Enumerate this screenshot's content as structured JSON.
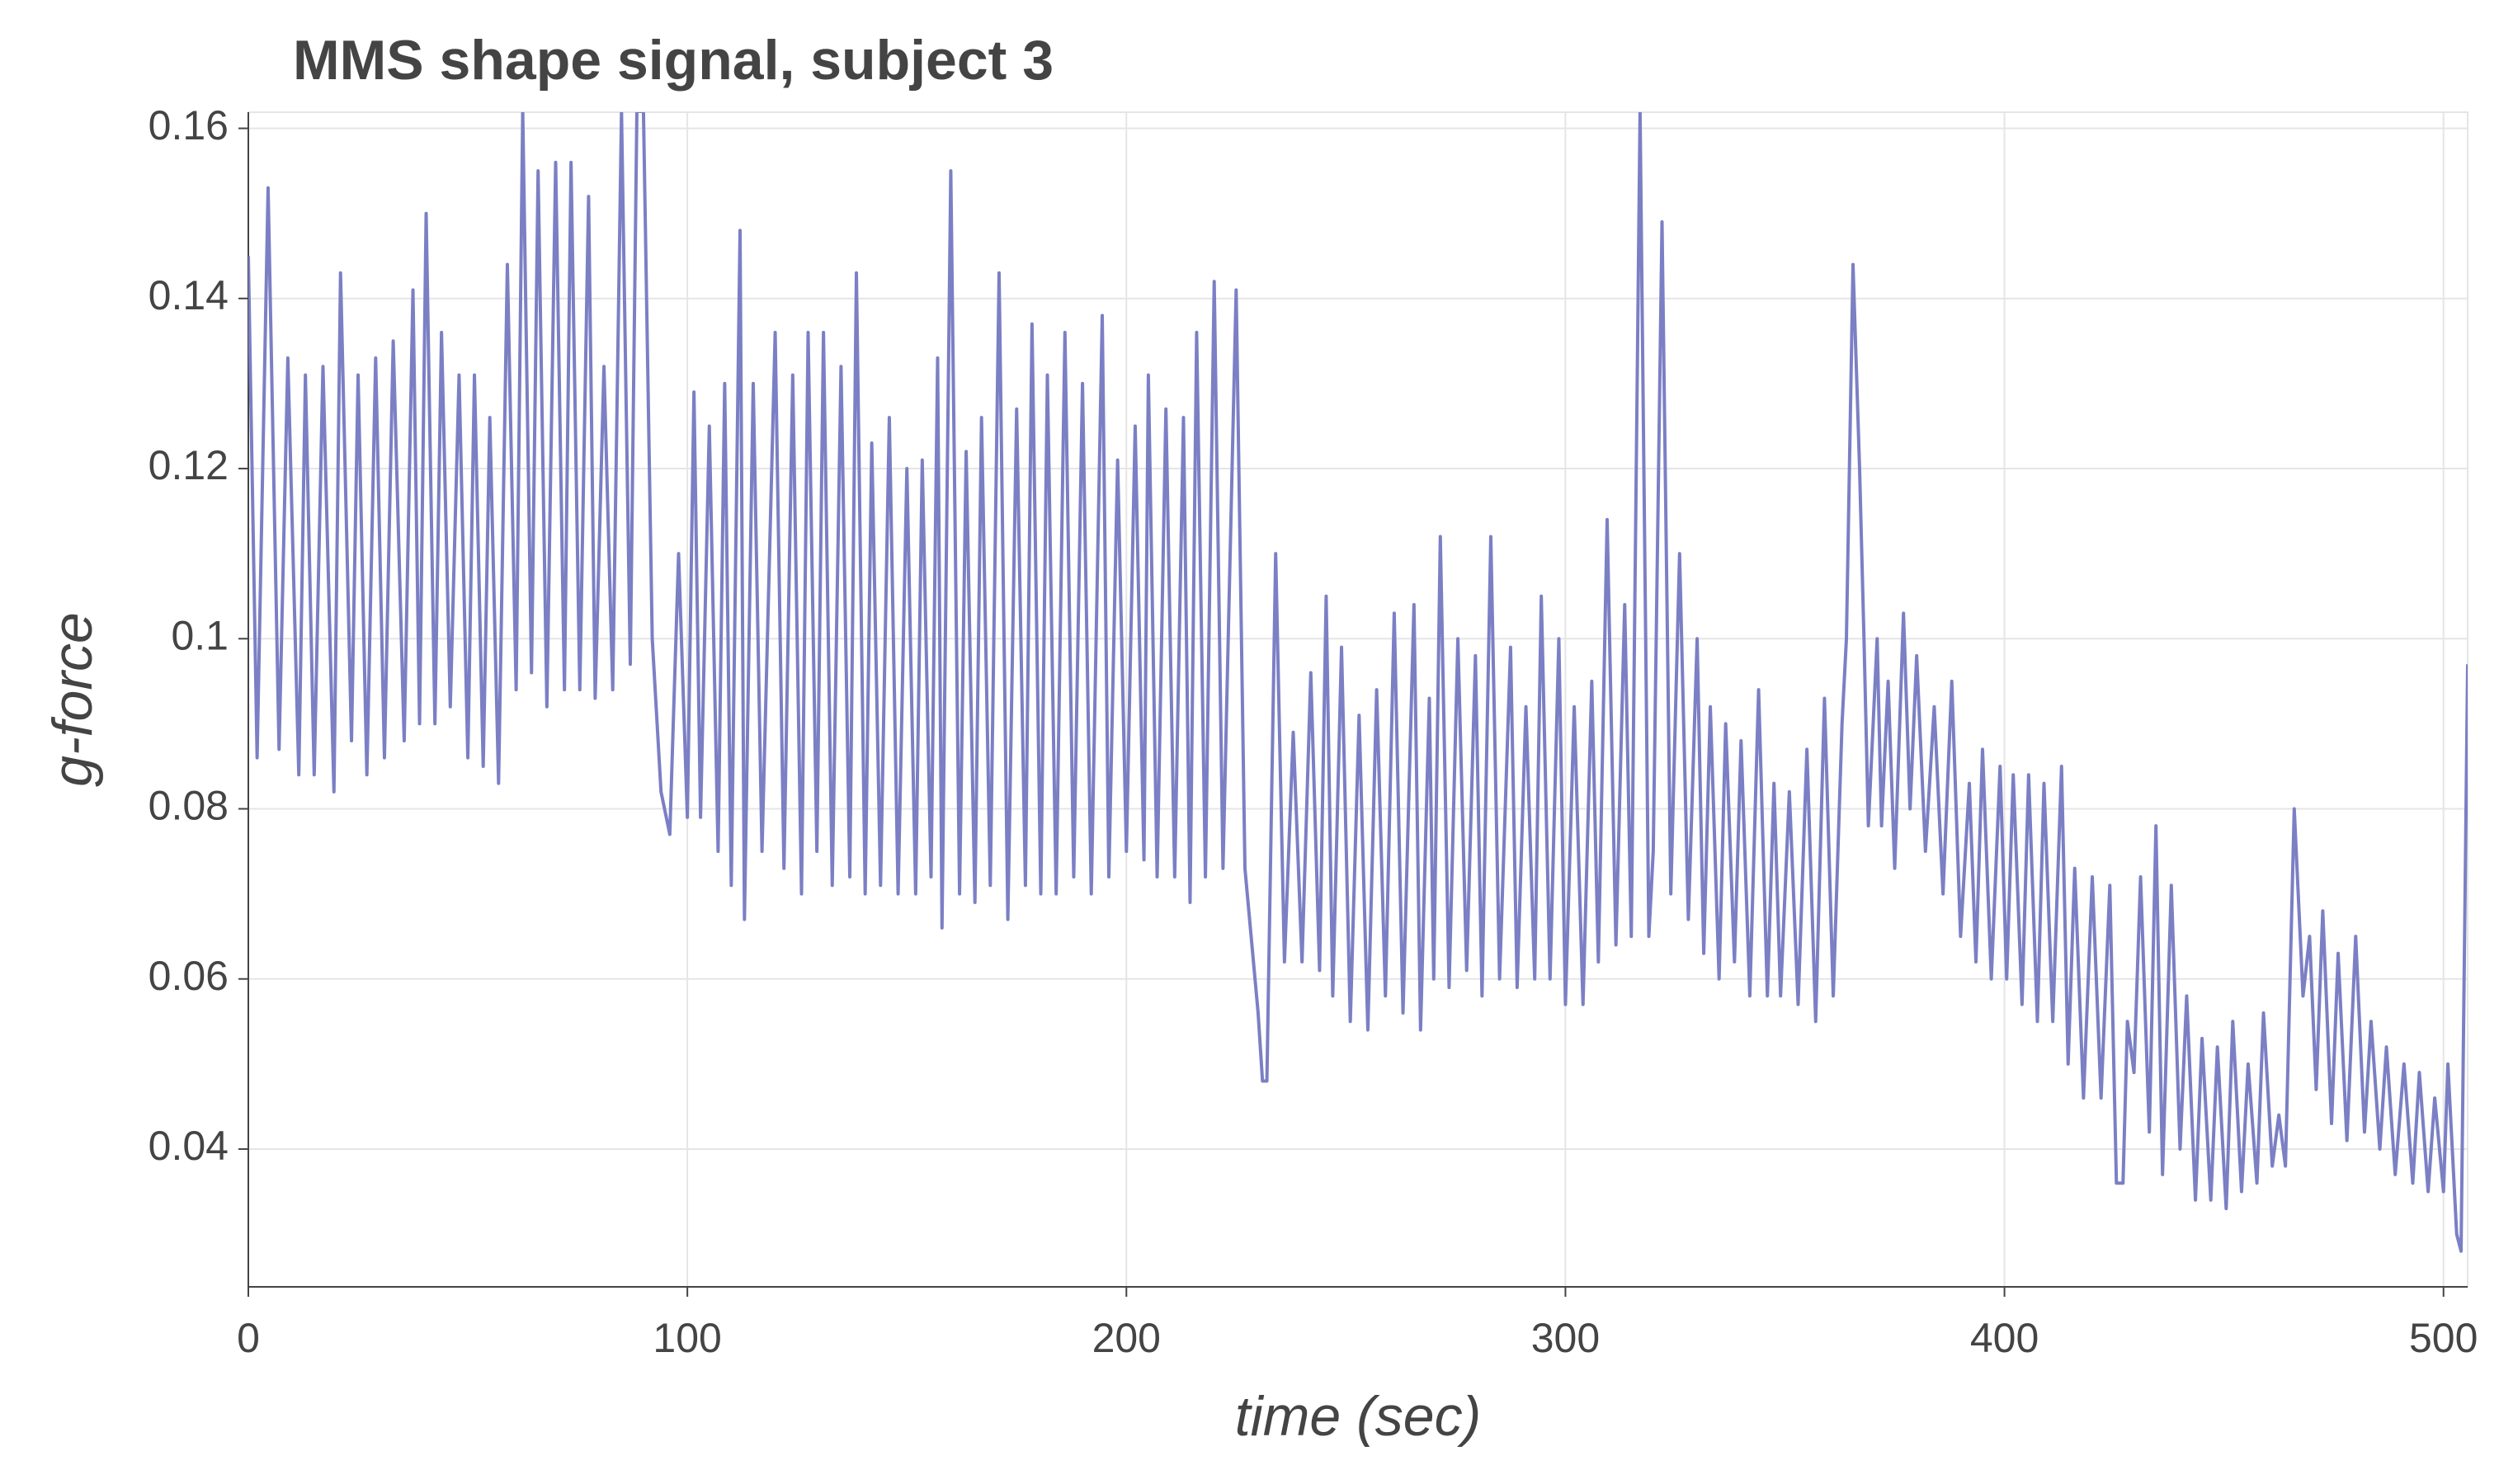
{
  "chart_data": {
    "type": "line",
    "title": "MMS shape signal, subject 3",
    "x_label": "time (sec)",
    "y_label": "g-force",
    "color": "#7b7fc4",
    "grid": true,
    "xlim": [
      0,
      505.5
    ],
    "ylim": [
      0.0238,
      0.1619
    ],
    "xticks": [
      0,
      100,
      200,
      300,
      400,
      500
    ],
    "yticks": [
      0.04,
      0.06,
      0.08,
      0.1,
      0.12,
      0.14,
      0.16
    ],
    "x": [
      0,
      2,
      4.5,
      7,
      9,
      11.5,
      13,
      15,
      17,
      19.5,
      21,
      23.5,
      25,
      27,
      29,
      31,
      33,
      35.5,
      37.5,
      39,
      40.5,
      42.5,
      44,
      46,
      48,
      50,
      51.5,
      53.5,
      55,
      57,
      59,
      61,
      62.5,
      64.5,
      66,
      68,
      70,
      72,
      73.5,
      75.5,
      77.5,
      79,
      81,
      83,
      85,
      87,
      88.5,
      90,
      92,
      94,
      96,
      98,
      100,
      101.5,
      103,
      105,
      107,
      108.5,
      110,
      112,
      113,
      115,
      117,
      120,
      122,
      124,
      126,
      127.5,
      129.5,
      131,
      133,
      135,
      137,
      138.5,
      140.5,
      142,
      144,
      146,
      148,
      150,
      152,
      153.5,
      155.5,
      157,
      158,
      160,
      162,
      163.5,
      165.5,
      167,
      169,
      171,
      173,
      175,
      177,
      178.5,
      180.5,
      182,
      184,
      186,
      188,
      190,
      192,
      194.5,
      196,
      198,
      200,
      202,
      204,
      205,
      207,
      209,
      211,
      213,
      214.5,
      216,
      218,
      220,
      222,
      225,
      227,
      230,
      231,
      232,
      234,
      236,
      238,
      240,
      242,
      244,
      245.5,
      247,
      249,
      251,
      253,
      255,
      257,
      259,
      261,
      263,
      265.5,
      267,
      269,
      270,
      271.5,
      273.5,
      275.5,
      277.5,
      279.5,
      281,
      283,
      285,
      287.5,
      289,
      291,
      293,
      294.5,
      296.5,
      298.5,
      300,
      302,
      304,
      306,
      307.5,
      309.5,
      311.5,
      313.5,
      315,
      317,
      319,
      320,
      322,
      324,
      326,
      328,
      330,
      331.5,
      333,
      335,
      336.5,
      338.5,
      340,
      342,
      344,
      346,
      347.5,
      349,
      351,
      353,
      355,
      357,
      359,
      361,
      363,
      364,
      365.5,
      367,
      368,
      369,
      371,
      372,
      373.5,
      375,
      377,
      378.5,
      380,
      382,
      384,
      386,
      388,
      390,
      392,
      393.5,
      395,
      397,
      399,
      400.5,
      402,
      404,
      405.5,
      407.5,
      409,
      411,
      413,
      414.5,
      416,
      418,
      420,
      422,
      424,
      425.5,
      427,
      428,
      429.5,
      431,
      433,
      434.5,
      436,
      438,
      440,
      441.5,
      443.5,
      445,
      447,
      448.5,
      450.5,
      452,
      454,
      455.5,
      457.5,
      459,
      461,
      462.5,
      464,
      466,
      468,
      469.5,
      471,
      472.5,
      474.5,
      476,
      478,
      480,
      482,
      483.5,
      485.5,
      487,
      489,
      491,
      493,
      494.5,
      496.5,
      498,
      500,
      501,
      503,
      504,
      505.5
    ],
    "values": [
      0.145,
      0.086,
      0.153,
      0.087,
      0.133,
      0.084,
      0.131,
      0.084,
      0.132,
      0.082,
      0.143,
      0.088,
      0.131,
      0.084,
      0.133,
      0.086,
      0.135,
      0.088,
      0.141,
      0.09,
      0.15,
      0.09,
      0.136,
      0.092,
      0.131,
      0.086,
      0.131,
      0.085,
      0.126,
      0.083,
      0.144,
      0.094,
      0.162,
      0.096,
      0.155,
      0.092,
      0.156,
      0.094,
      0.156,
      0.094,
      0.152,
      0.093,
      0.132,
      0.094,
      0.162,
      0.097,
      0.162,
      0.162,
      0.1,
      0.082,
      0.077,
      0.11,
      0.079,
      0.129,
      0.079,
      0.125,
      0.075,
      0.13,
      0.071,
      0.148,
      0.067,
      0.13,
      0.075,
      0.136,
      0.073,
      0.131,
      0.07,
      0.136,
      0.075,
      0.136,
      0.071,
      0.132,
      0.072,
      0.143,
      0.07,
      0.123,
      0.071,
      0.126,
      0.07,
      0.12,
      0.07,
      0.121,
      0.072,
      0.133,
      0.066,
      0.155,
      0.07,
      0.122,
      0.069,
      0.126,
      0.071,
      0.143,
      0.067,
      0.127,
      0.071,
      0.137,
      0.07,
      0.131,
      0.07,
      0.136,
      0.072,
      0.13,
      0.07,
      0.138,
      0.072,
      0.121,
      0.075,
      0.125,
      0.074,
      0.131,
      0.072,
      0.127,
      0.072,
      0.126,
      0.069,
      0.136,
      0.072,
      0.142,
      0.073,
      0.141,
      0.073,
      0.056,
      0.048,
      0.048,
      0.11,
      0.062,
      0.089,
      0.062,
      0.096,
      0.061,
      0.105,
      0.058,
      0.099,
      0.055,
      0.091,
      0.054,
      0.094,
      0.058,
      0.103,
      0.056,
      0.104,
      0.054,
      0.093,
      0.06,
      0.112,
      0.059,
      0.1,
      0.061,
      0.098,
      0.058,
      0.112,
      0.06,
      0.099,
      0.059,
      0.092,
      0.06,
      0.105,
      0.06,
      0.1,
      0.057,
      0.092,
      0.057,
      0.095,
      0.062,
      0.114,
      0.064,
      0.104,
      0.065,
      0.162,
      0.065,
      0.075,
      0.149,
      0.07,
      0.11,
      0.067,
      0.1,
      0.063,
      0.092,
      0.06,
      0.09,
      0.062,
      0.088,
      0.058,
      0.094,
      0.058,
      0.083,
      0.058,
      0.082,
      0.057,
      0.087,
      0.055,
      0.093,
      0.058,
      0.09,
      0.1,
      0.144,
      0.12,
      0.1,
      0.078,
      0.1,
      0.078,
      0.095,
      0.073,
      0.103,
      0.08,
      0.098,
      0.075,
      0.092,
      0.07,
      0.095,
      0.065,
      0.083,
      0.062,
      0.087,
      0.06,
      0.085,
      0.06,
      0.084,
      0.057,
      0.084,
      0.055,
      0.083,
      0.055,
      0.085,
      0.05,
      0.073,
      0.046,
      0.072,
      0.046,
      0.071,
      0.036,
      0.036,
      0.055,
      0.049,
      0.072,
      0.042,
      0.078,
      0.037,
      0.071,
      0.04,
      0.058,
      0.034,
      0.053,
      0.034,
      0.052,
      0.033,
      0.055,
      0.035,
      0.05,
      0.036,
      0.056,
      0.038,
      0.044,
      0.038,
      0.08,
      0.058,
      0.065,
      0.047,
      0.068,
      0.043,
      0.063,
      0.041,
      0.065,
      0.042,
      0.055,
      0.04,
      0.052,
      0.037,
      0.05,
      0.036,
      0.049,
      0.035,
      0.046,
      0.035,
      0.05,
      0.03,
      0.028,
      0.097
    ]
  }
}
